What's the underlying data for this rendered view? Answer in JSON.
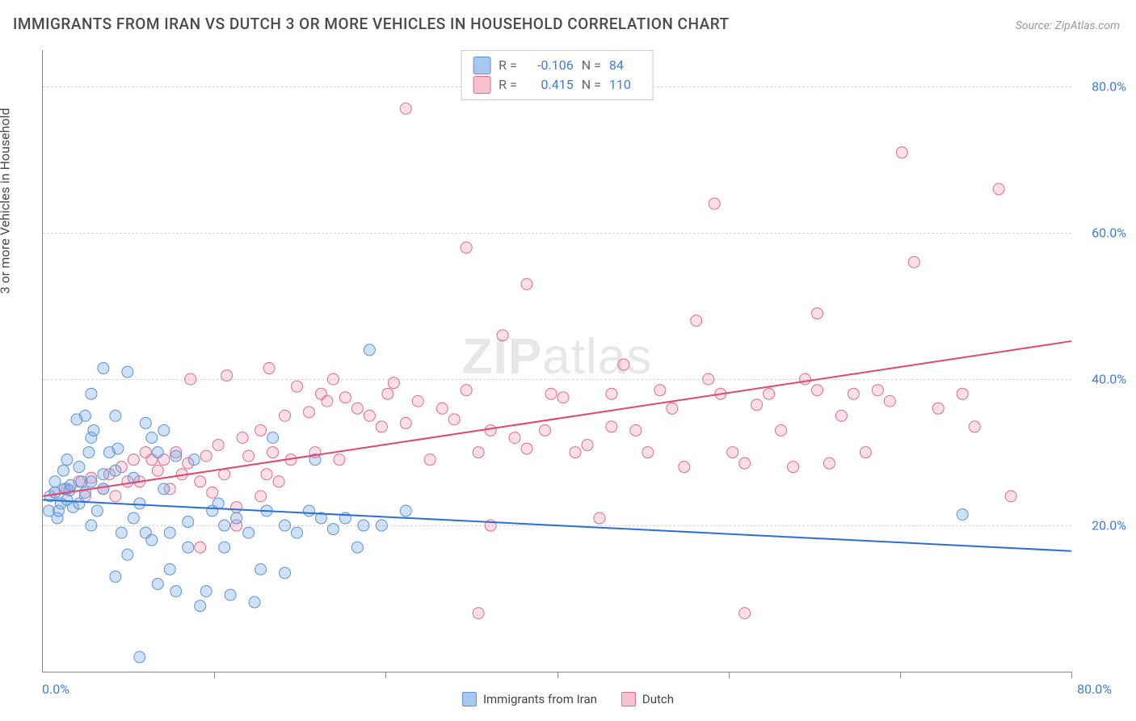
{
  "title": "IMMIGRANTS FROM IRAN VS DUTCH 3 OR MORE VEHICLES IN HOUSEHOLD CORRELATION CHART",
  "source_label": "Source: ZipAtlas.com",
  "y_axis_label": "3 or more Vehicles in Household",
  "watermark_bold": "ZIP",
  "watermark_rest": "atlas",
  "x_origin_label": "0.0%",
  "x_max_label": "80.0%",
  "y_tick_labels": [
    "20.0%",
    "40.0%",
    "60.0%",
    "80.0%"
  ],
  "legend_bottom": {
    "series1": {
      "label": "Immigrants from Iran",
      "swatch_fill": "#a9c8ef",
      "swatch_stroke": "#5b93d6"
    },
    "series2": {
      "label": "Dutch",
      "swatch_fill": "#f6c2cf",
      "swatch_stroke": "#e06b8b"
    }
  },
  "stats_legend": {
    "row1": {
      "swatch_fill": "#a9c8ef",
      "swatch_stroke": "#5b93d6",
      "R_label": "R =",
      "R_value": "-0.106",
      "N_label": "N =",
      "N_value": "84"
    },
    "row2": {
      "swatch_fill": "#f6c2cf",
      "swatch_stroke": "#e06b8b",
      "R_label": "R =",
      "R_value": "0.415",
      "N_label": "N =",
      "N_value": "110"
    }
  },
  "chart": {
    "type": "scatter",
    "xlim": [
      0,
      85
    ],
    "ylim": [
      0,
      85
    ],
    "ytick_values": [
      20,
      40,
      60,
      80
    ],
    "xtick_values": [
      14.17,
      28.33,
      42.5,
      56.67,
      70.83,
      85
    ],
    "background_color": "#ffffff",
    "grid_color": "#d6d6d6",
    "marker_radius": 7,
    "marker_stroke_width": 1,
    "series": {
      "iran": {
        "fill": "rgba(120,170,230,0.35)",
        "stroke": "#5b93d6",
        "trend_color": "#2a6fd6",
        "trend_width": 2,
        "trend": {
          "x1": 0,
          "y1": 23.5,
          "x2": 85,
          "y2": 16.5
        },
        "points": [
          [
            0.5,
            22
          ],
          [
            0.6,
            24
          ],
          [
            1,
            24.5
          ],
          [
            1.5,
            23
          ],
          [
            1.2,
            21
          ],
          [
            1.8,
            25
          ],
          [
            2,
            23.5
          ],
          [
            2.2,
            24.8
          ],
          [
            1,
            26
          ],
          [
            1.3,
            22
          ],
          [
            2.5,
            22.5
          ],
          [
            3,
            23
          ],
          [
            3,
            28
          ],
          [
            3.5,
            24.5
          ],
          [
            4,
            26
          ],
          [
            4,
            20
          ],
          [
            4.5,
            22
          ],
          [
            4,
            32
          ],
          [
            5,
            27
          ],
          [
            5,
            25
          ],
          [
            5.5,
            30
          ],
          [
            6,
            27.5
          ],
          [
            6,
            13
          ],
          [
            6.5,
            19
          ],
          [
            7,
            16
          ],
          [
            7,
            41
          ],
          [
            7.5,
            21
          ],
          [
            8,
            23
          ],
          [
            8.5,
            19
          ],
          [
            8.5,
            34
          ],
          [
            9,
            32
          ],
          [
            9,
            18
          ],
          [
            9.5,
            30
          ],
          [
            10,
            33
          ],
          [
            10,
            25
          ],
          [
            10.5,
            19
          ],
          [
            11,
            11
          ],
          [
            11,
            29.5
          ],
          [
            12,
            17
          ],
          [
            12,
            20.5
          ],
          [
            13,
            9
          ],
          [
            13.5,
            11
          ],
          [
            14,
            22
          ],
          [
            14.5,
            23
          ],
          [
            15,
            17
          ],
          [
            15,
            20
          ],
          [
            15.5,
            10.5
          ],
          [
            16,
            21
          ],
          [
            17,
            19
          ],
          [
            17.5,
            9.5
          ],
          [
            18,
            14
          ],
          [
            18.5,
            22
          ],
          [
            19,
            32
          ],
          [
            20,
            13.5
          ],
          [
            20,
            20
          ],
          [
            21,
            19
          ],
          [
            22,
            22
          ],
          [
            22.5,
            29
          ],
          [
            23,
            21
          ],
          [
            24,
            19.5
          ],
          [
            25,
            21
          ],
          [
            26,
            17
          ],
          [
            26.5,
            20
          ],
          [
            27,
            44
          ],
          [
            28,
            20
          ],
          [
            30,
            22
          ],
          [
            5,
            41.5
          ],
          [
            3.5,
            35
          ],
          [
            2.8,
            34.5
          ],
          [
            6,
            35
          ],
          [
            8,
            2
          ],
          [
            4,
            38
          ],
          [
            4.2,
            33
          ],
          [
            2,
            29
          ],
          [
            1.7,
            27.5
          ],
          [
            2.3,
            25.5
          ],
          [
            6.2,
            30.5
          ],
          [
            7.5,
            26.5
          ],
          [
            3.2,
            26
          ],
          [
            3.8,
            30
          ],
          [
            76,
            21.5
          ],
          [
            9.5,
            12
          ],
          [
            10.5,
            14
          ],
          [
            12.5,
            29
          ]
        ]
      },
      "dutch": {
        "fill": "rgba(240,150,175,0.30)",
        "stroke": "#e06b8b",
        "trend_color": "#e3466f",
        "trend_width": 2,
        "trend": {
          "x1": 0,
          "y1": 24,
          "x2": 85,
          "y2": 45.2
        },
        "points": [
          [
            1,
            24.5
          ],
          [
            2,
            25
          ],
          [
            3,
            26
          ],
          [
            3.5,
            24
          ],
          [
            4,
            26.5
          ],
          [
            5,
            25
          ],
          [
            5.5,
            27
          ],
          [
            6,
            24
          ],
          [
            6.5,
            28
          ],
          [
            7,
            26
          ],
          [
            7.5,
            29
          ],
          [
            8,
            26
          ],
          [
            8.5,
            30
          ],
          [
            9,
            29
          ],
          [
            9.5,
            27.5
          ],
          [
            10,
            29
          ],
          [
            10.5,
            25
          ],
          [
            11,
            30
          ],
          [
            11.5,
            27
          ],
          [
            12,
            28.5
          ],
          [
            12.2,
            40
          ],
          [
            13,
            26
          ],
          [
            13.5,
            29.5
          ],
          [
            14,
            24.5
          ],
          [
            14.5,
            31
          ],
          [
            15,
            27
          ],
          [
            15.2,
            40.5
          ],
          [
            16,
            20
          ],
          [
            16.5,
            32
          ],
          [
            17,
            29.5
          ],
          [
            18,
            33
          ],
          [
            18.5,
            27
          ],
          [
            18.7,
            41.5
          ],
          [
            19,
            30
          ],
          [
            20,
            35
          ],
          [
            20.5,
            29
          ],
          [
            21,
            39
          ],
          [
            22,
            35.5
          ],
          [
            22.5,
            30
          ],
          [
            23,
            38
          ],
          [
            23.5,
            37
          ],
          [
            24,
            40
          ],
          [
            24.5,
            29
          ],
          [
            25,
            37.5
          ],
          [
            26,
            36
          ],
          [
            27,
            35
          ],
          [
            28,
            33.5
          ],
          [
            28.5,
            38
          ],
          [
            29,
            39.5
          ],
          [
            30,
            34
          ],
          [
            30,
            77
          ],
          [
            31,
            37
          ],
          [
            32,
            29
          ],
          [
            33,
            36
          ],
          [
            34,
            34.5
          ],
          [
            35,
            38.5
          ],
          [
            35,
            58
          ],
          [
            36,
            30
          ],
          [
            37,
            33
          ],
          [
            37,
            20
          ],
          [
            38,
            46
          ],
          [
            39,
            32
          ],
          [
            40,
            30.5
          ],
          [
            40,
            53
          ],
          [
            41.5,
            33
          ],
          [
            42,
            38
          ],
          [
            43,
            37.5
          ],
          [
            44,
            30
          ],
          [
            45,
            31
          ],
          [
            46,
            21
          ],
          [
            47,
            33.5
          ],
          [
            48,
            42
          ],
          [
            49,
            33
          ],
          [
            50,
            30
          ],
          [
            51,
            38.5
          ],
          [
            52,
            36
          ],
          [
            53,
            28
          ],
          [
            54,
            48
          ],
          [
            55,
            40
          ],
          [
            55.5,
            64
          ],
          [
            56,
            38
          ],
          [
            57,
            30
          ],
          [
            58,
            28.5
          ],
          [
            59,
            36.5
          ],
          [
            60,
            38
          ],
          [
            61,
            33
          ],
          [
            62,
            28
          ],
          [
            63,
            40
          ],
          [
            64,
            38.5
          ],
          [
            64,
            49
          ],
          [
            65,
            28.5
          ],
          [
            66,
            35
          ],
          [
            67,
            38
          ],
          [
            68,
            30
          ],
          [
            69,
            38.5
          ],
          [
            70,
            37
          ],
          [
            71,
            71
          ],
          [
            72,
            56
          ],
          [
            74,
            36
          ],
          [
            76,
            38
          ],
          [
            77,
            33.5
          ],
          [
            79,
            66
          ],
          [
            80,
            24
          ],
          [
            36,
            8
          ],
          [
            58,
            8
          ],
          [
            13,
            17
          ],
          [
            16,
            22.5
          ],
          [
            18,
            24
          ],
          [
            19.5,
            26
          ],
          [
            47,
            38
          ]
        ]
      }
    }
  }
}
